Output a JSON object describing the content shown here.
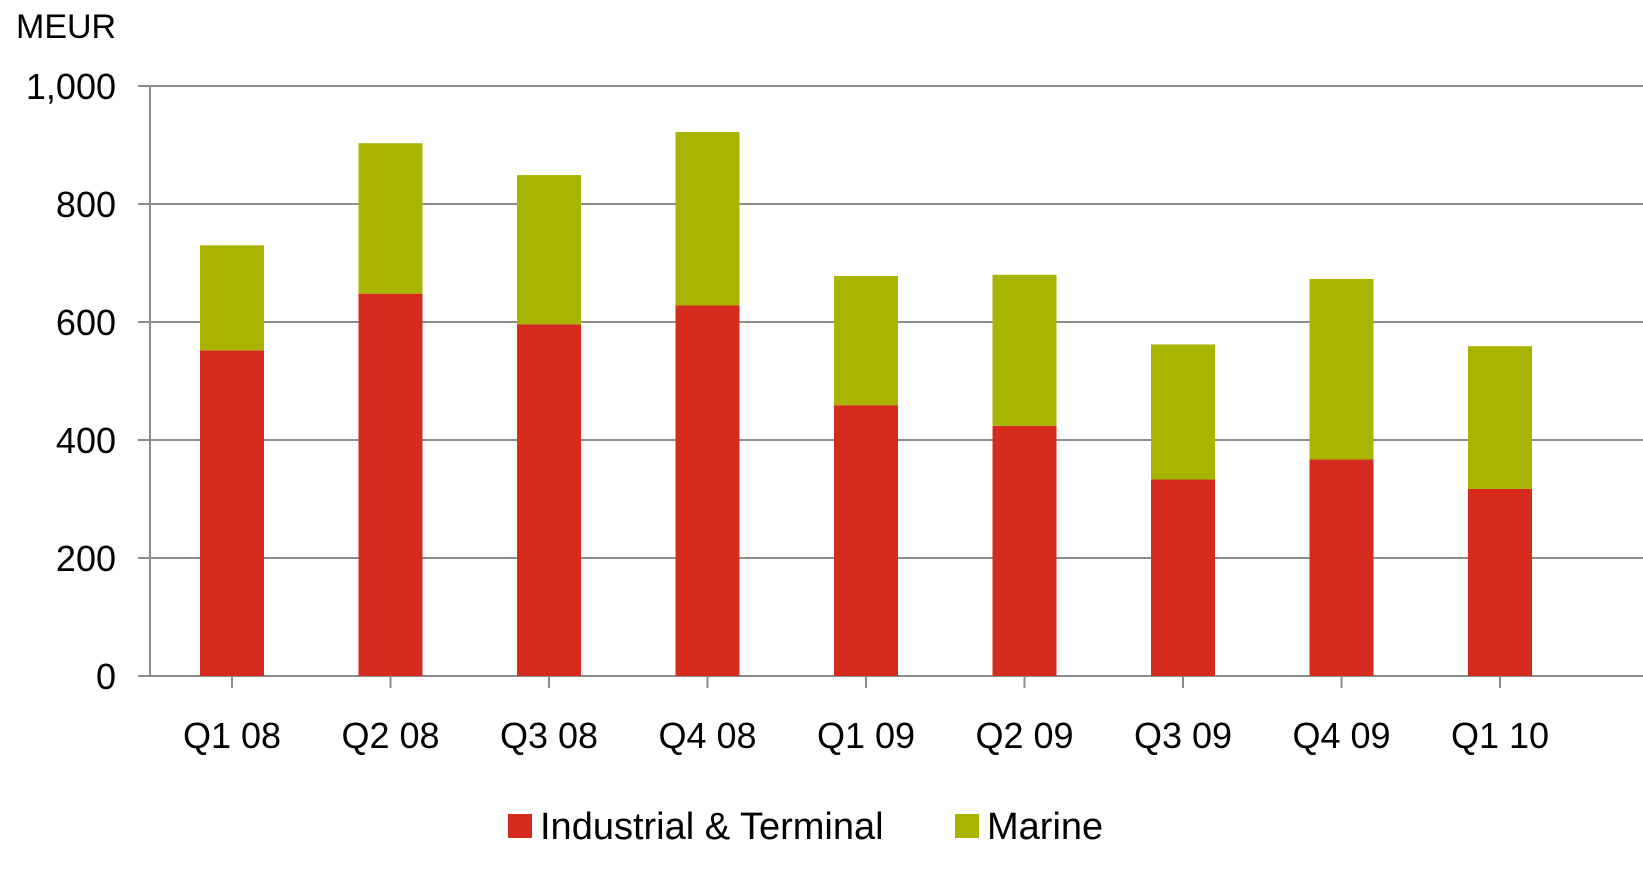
{
  "chart_data": {
    "type": "bar",
    "stacked": true,
    "ylabel": "MEUR",
    "ylim": [
      0,
      1000
    ],
    "yticks": [
      0,
      200,
      400,
      600,
      800,
      1000
    ],
    "ytick_labels": [
      "0",
      "200",
      "400",
      "600",
      "800",
      "1,000"
    ],
    "grid": true,
    "legend_position": "bottom",
    "categories": [
      "Q1 08",
      "Q2 08",
      "Q3 08",
      "Q4 08",
      "Q1 09",
      "Q2 09",
      "Q3 09",
      "Q4 09",
      "Q1 10"
    ],
    "series": [
      {
        "name": "Industrial & Terminal",
        "color": "#d52b1e",
        "values": [
          552,
          648,
          596,
          628,
          459,
          424,
          333,
          367,
          317
        ]
      },
      {
        "name": "Marine",
        "color": "#a8b400",
        "values": [
          178,
          255,
          253,
          294,
          219,
          256,
          229,
          306,
          242
        ]
      }
    ]
  }
}
